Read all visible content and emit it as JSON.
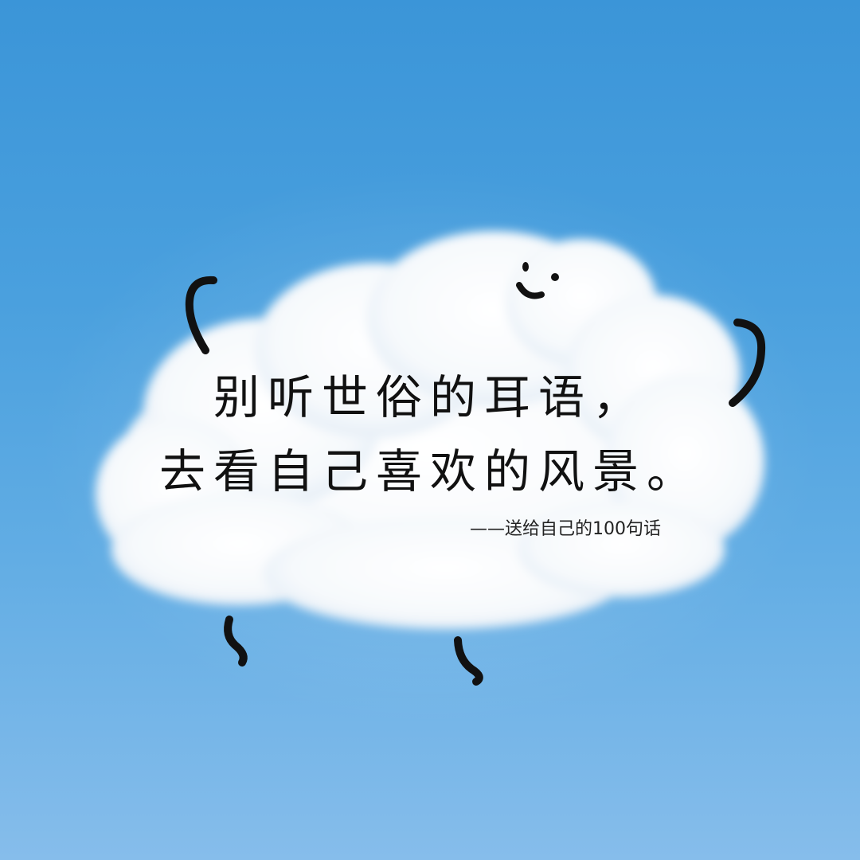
{
  "quote": {
    "line1": "别听世俗的耳语，",
    "line2": "去看自己喜欢的风景。"
  },
  "source": "——送给自己的100句话",
  "colors": {
    "sky_top": "#3b95d8",
    "sky_bottom": "#86bdeb",
    "cloud": "#ffffff",
    "ink": "#111111"
  },
  "icons": [
    "smiley-face-icon",
    "left-arm-doodle",
    "right-arm-doodle",
    "left-leg-doodle",
    "right-leg-doodle"
  ]
}
